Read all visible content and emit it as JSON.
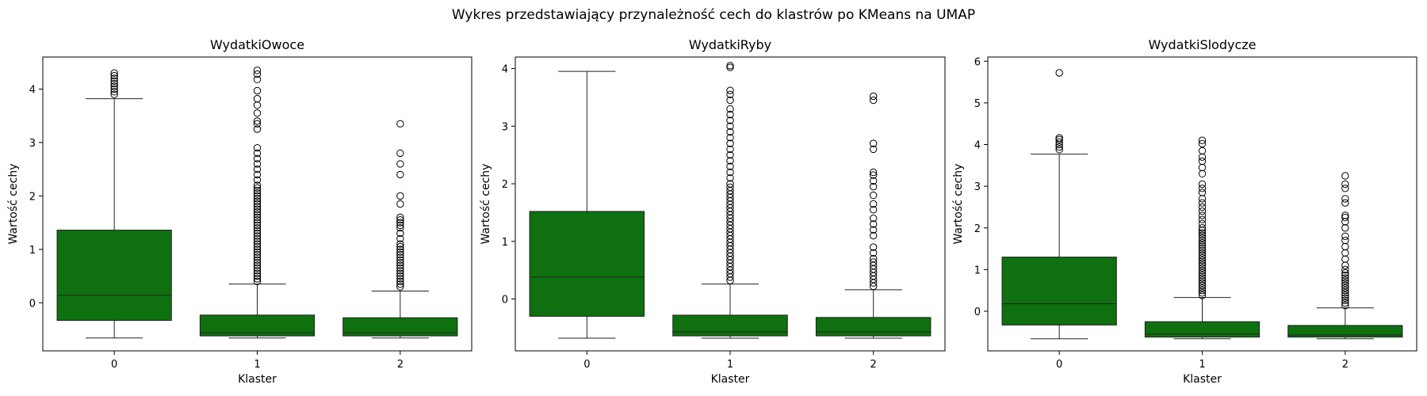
{
  "suptitle": "Wykres przedstawiający przynależność cech do klastrów po KMeans na UMAP",
  "chart_data": [
    {
      "type": "boxplot",
      "title": "WydatkiOwoce",
      "xlabel": "Klaster",
      "ylabel": "Wartość cechy",
      "categories": [
        "0",
        "1",
        "2"
      ],
      "ylim": [
        -0.9,
        4.6
      ],
      "yticks": [
        0,
        1,
        2,
        3,
        4
      ],
      "box_color": "#0e700e",
      "boxes": [
        {
          "min": -0.66,
          "q1": -0.33,
          "median": 0.14,
          "q3": 1.36,
          "max": 3.82,
          "outliers": [
            3.9,
            3.95,
            4.0,
            4.05,
            4.1,
            4.15,
            4.2,
            4.25,
            4.3
          ]
        },
        {
          "min": -0.66,
          "q1": -0.62,
          "median": -0.56,
          "q3": -0.23,
          "max": 0.35,
          "outliers": [
            0.4,
            0.45,
            0.5,
            0.55,
            0.6,
            0.65,
            0.7,
            0.75,
            0.8,
            0.85,
            0.9,
            0.95,
            1.0,
            1.05,
            1.1,
            1.15,
            1.2,
            1.25,
            1.3,
            1.35,
            1.4,
            1.45,
            1.5,
            1.55,
            1.6,
            1.65,
            1.7,
            1.75,
            1.8,
            1.85,
            1.9,
            1.95,
            2.0,
            2.05,
            2.1,
            2.15,
            2.2,
            2.3,
            2.4,
            2.5,
            2.6,
            2.7,
            2.8,
            2.9,
            3.25,
            3.35,
            3.4,
            3.55,
            3.7,
            3.82,
            3.97,
            4.18,
            4.28,
            4.35
          ]
        },
        {
          "min": -0.66,
          "q1": -0.62,
          "median": -0.56,
          "q3": -0.28,
          "max": 0.22,
          "outliers": [
            0.3,
            0.35,
            0.4,
            0.45,
            0.5,
            0.55,
            0.6,
            0.65,
            0.7,
            0.75,
            0.8,
            0.85,
            0.9,
            0.95,
            1.0,
            1.05,
            1.1,
            1.2,
            1.3,
            1.4,
            1.45,
            1.5,
            1.55,
            1.6,
            1.85,
            2.0,
            2.4,
            2.6,
            2.8,
            3.35
          ]
        }
      ]
    },
    {
      "type": "boxplot",
      "title": "WydatkiRyby",
      "xlabel": "Klaster",
      "ylabel": "Wartość cechy",
      "categories": [
        "0",
        "1",
        "2"
      ],
      "ylim": [
        -0.9,
        4.2
      ],
      "yticks": [
        0,
        1,
        2,
        3,
        4
      ],
      "box_color": "#0e700e",
      "boxes": [
        {
          "min": -0.68,
          "q1": -0.3,
          "median": 0.38,
          "q3": 1.52,
          "max": 3.95,
          "outliers": []
        },
        {
          "min": -0.68,
          "q1": -0.64,
          "median": -0.57,
          "q3": -0.28,
          "max": 0.26,
          "outliers": [
            0.32,
            0.38,
            0.44,
            0.5,
            0.56,
            0.62,
            0.68,
            0.74,
            0.8,
            0.86,
            0.92,
            0.98,
            1.04,
            1.1,
            1.16,
            1.22,
            1.28,
            1.34,
            1.4,
            1.46,
            1.52,
            1.58,
            1.64,
            1.7,
            1.76,
            1.82,
            1.88,
            1.94,
            2.0,
            2.1,
            2.2,
            2.3,
            2.4,
            2.5,
            2.6,
            2.7,
            2.8,
            2.9,
            3.0,
            3.1,
            3.2,
            3.3,
            3.45,
            3.55,
            3.62,
            4.02,
            4.05
          ]
        },
        {
          "min": -0.68,
          "q1": -0.64,
          "median": -0.57,
          "q3": -0.32,
          "max": 0.16,
          "outliers": [
            0.22,
            0.28,
            0.34,
            0.4,
            0.46,
            0.52,
            0.58,
            0.64,
            0.7,
            0.8,
            0.9,
            1.1,
            1.2,
            1.3,
            1.4,
            1.55,
            1.65,
            1.8,
            1.95,
            2.05,
            2.15,
            2.2,
            2.6,
            2.7,
            3.45,
            3.52
          ]
        }
      ]
    },
    {
      "type": "boxplot",
      "title": "WydatkiSlodycze",
      "xlabel": "Klaster",
      "ylabel": "Wartość cechy",
      "categories": [
        "0",
        "1",
        "2"
      ],
      "ylim": [
        -0.95,
        6.1
      ],
      "yticks": [
        0,
        1,
        2,
        3,
        4,
        5,
        6
      ],
      "box_color": "#0e700e",
      "boxes": [
        {
          "min": -0.66,
          "q1": -0.33,
          "median": 0.18,
          "q3": 1.3,
          "max": 3.77,
          "outliers": [
            3.88,
            3.94,
            4.0,
            4.06,
            4.12,
            4.16,
            5.72
          ]
        },
        {
          "min": -0.66,
          "q1": -0.62,
          "median": -0.55,
          "q3": -0.25,
          "max": 0.33,
          "outliers": [
            0.38,
            0.44,
            0.5,
            0.56,
            0.62,
            0.68,
            0.74,
            0.8,
            0.86,
            0.92,
            0.98,
            1.04,
            1.1,
            1.16,
            1.22,
            1.28,
            1.34,
            1.4,
            1.46,
            1.52,
            1.58,
            1.64,
            1.7,
            1.76,
            1.82,
            1.88,
            1.94,
            2.0,
            2.1,
            2.2,
            2.3,
            2.4,
            2.5,
            2.6,
            2.7,
            2.85,
            2.95,
            3.05,
            3.3,
            3.45,
            3.6,
            3.7,
            3.85,
            4.02,
            4.1
          ]
        },
        {
          "min": -0.66,
          "q1": -0.62,
          "median": -0.57,
          "q3": -0.34,
          "max": 0.08,
          "outliers": [
            0.14,
            0.2,
            0.26,
            0.32,
            0.38,
            0.44,
            0.5,
            0.56,
            0.62,
            0.68,
            0.74,
            0.8,
            0.86,
            0.92,
            1.0,
            1.1,
            1.25,
            1.4,
            1.55,
            1.7,
            1.8,
            2.0,
            2.15,
            2.25,
            2.3,
            2.6,
            2.7,
            2.95,
            3.05,
            3.25
          ]
        }
      ]
    }
  ]
}
